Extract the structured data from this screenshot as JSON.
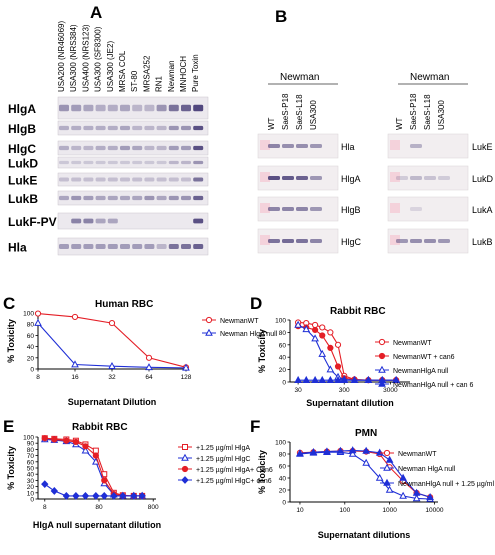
{
  "panelA": {
    "letter": "A",
    "lanes": [
      "USA200 (NR46069)",
      "USA300 (NRS384)",
      "USA400 (NRS123)",
      "USA300 (SF8300)",
      "USA300 (JE2)",
      "MRSA COL",
      "ST-80",
      "MRSA252",
      "RN1",
      "Newman",
      "MNHOCH",
      "Pure Toxin"
    ],
    "rows": [
      "HlgA",
      "HlgB",
      "HlgC",
      "LukD",
      "LukE",
      "LukB",
      "LukF-PV",
      "Hla"
    ]
  },
  "panelB": {
    "letter": "B",
    "strain": "Newman",
    "lanes": [
      "WT",
      "SaeS-P18",
      "SaeS-L18",
      "USA300"
    ],
    "left_rows": [
      "Hla",
      "HlgA",
      "HlgB",
      "HlgC"
    ],
    "right_rows": [
      "LukE",
      "LukD",
      "LukA",
      "LukB"
    ]
  },
  "chart_data": [
    {
      "panel": "C",
      "type": "line",
      "title": "Human RBC",
      "xlabel": "Supernatant Dilution",
      "ylabel": "% Toxicity",
      "x_ticks": [
        "8",
        "16",
        "32",
        "64",
        "128"
      ],
      "y_ticks": [
        "0",
        "20",
        "40",
        "60",
        "80",
        "100"
      ],
      "categories": [
        "8",
        "16",
        "32",
        "64",
        "128"
      ],
      "series": [
        {
          "name": "NewmanWT",
          "values": [
            99,
            93,
            82,
            20,
            3
          ]
        },
        {
          "name": "Newman HlgA null",
          "values": [
            82,
            8,
            5,
            3,
            2
          ]
        }
      ]
    },
    {
      "panel": "D",
      "type": "line",
      "title": "Rabbit RBC",
      "xlabel": "Supernatant dilution",
      "ylabel": "% Toxicity",
      "x_ticks": [
        "30",
        "300",
        "3000"
      ],
      "y_ticks": [
        "0",
        "20",
        "40",
        "60",
        "80",
        "100"
      ],
      "x": [
        30,
        45,
        70,
        100,
        150,
        220,
        300,
        500,
        1000,
        2000,
        4000
      ],
      "series": [
        {
          "name": "NewmanWT",
          "values": [
            96,
            95,
            92,
            88,
            80,
            60,
            10,
            4,
            3,
            3,
            3
          ]
        },
        {
          "name": "NewmanWT + can6",
          "values": [
            90,
            88,
            84,
            75,
            55,
            25,
            6,
            4,
            3,
            3,
            3
          ]
        },
        {
          "name": "NewmanHlgA null",
          "values": [
            92,
            85,
            70,
            45,
            20,
            8,
            4,
            3,
            3,
            3,
            3
          ]
        },
        {
          "name": "NewmanHlgA null + can 6",
          "values": [
            3,
            3,
            3,
            3,
            3,
            3,
            3,
            3,
            3,
            3,
            3
          ]
        }
      ]
    },
    {
      "panel": "E",
      "type": "line",
      "title": "Rabbit RBC",
      "xlabel": "HlgA null supernatant dilution",
      "ylabel": "% Toxicity",
      "x_ticks": [
        "8",
        "80",
        "800"
      ],
      "y_ticks": [
        "0",
        "10",
        "20",
        "30",
        "40",
        "50",
        "60",
        "70",
        "80",
        "90",
        "100"
      ],
      "x": [
        8,
        12,
        20,
        30,
        45,
        70,
        100,
        150,
        220,
        350,
        500
      ],
      "series": [
        {
          "name": "+1.25 µg/ml HlgA",
          "values": [
            98,
            97,
            96,
            94,
            88,
            78,
            40,
            10,
            6,
            5,
            5
          ]
        },
        {
          "name": "+1.25 µg/ml HlgC",
          "values": [
            96,
            95,
            93,
            88,
            78,
            60,
            25,
            7,
            5,
            5,
            5
          ]
        },
        {
          "name": "+1.25 µg/ml HlgA+ Can6",
          "values": [
            98,
            96,
            94,
            92,
            85,
            70,
            30,
            8,
            5,
            5,
            5
          ]
        },
        {
          "name": "+1.25 µg/ml HlgC+ can6",
          "values": [
            24,
            13,
            5,
            5,
            5,
            5,
            5,
            5,
            5,
            5,
            5
          ]
        }
      ]
    },
    {
      "panel": "F",
      "type": "line",
      "title": "PMN",
      "xlabel": "Supernatant dilutions",
      "ylabel": "% Toxicity",
      "x_ticks": [
        "10",
        "100",
        "1000",
        "10000"
      ],
      "y_ticks": [
        "0",
        "20",
        "40",
        "60",
        "80",
        "100"
      ],
      "x": [
        10,
        20,
        40,
        80,
        150,
        300,
        600,
        1000,
        2000,
        4000,
        8000
      ],
      "series": [
        {
          "name": "NewmanWT",
          "values": [
            82,
            83,
            84,
            85,
            85,
            84,
            80,
            58,
            35,
            15,
            8
          ]
        },
        {
          "name": "Newman HlgA null",
          "values": [
            80,
            82,
            83,
            83,
            80,
            65,
            40,
            20,
            10,
            6,
            5
          ]
        },
        {
          "name": "NewmanHlgA null + 1.25 µg/ml HlgA",
          "values": [
            81,
            83,
            84,
            85,
            86,
            85,
            82,
            70,
            40,
            15,
            8
          ]
        }
      ]
    }
  ],
  "legend_labels": {
    "C": [
      "NewmanWT",
      "Newman HlgA null"
    ],
    "D": [
      "NewmanWT",
      "NewmanWT + can6",
      "NewmanHlgA null",
      "NewmanHlgA null + can 6"
    ],
    "E": [
      "+1.25 µg/ml HlgA",
      "+1.25 µg/ml HlgC",
      "+1.25 µg/ml HlgA+ Can6",
      "+1.25 µg/ml HlgC+ can6"
    ],
    "F": [
      "NewmanWT",
      "Newman HlgA null",
      "NewmanHlgA null + 1.25 µg/ml HlgA"
    ]
  },
  "colors": {
    "red": "#e41e26",
    "blue": "#1f2fd6",
    "band": "#4a3f78"
  }
}
